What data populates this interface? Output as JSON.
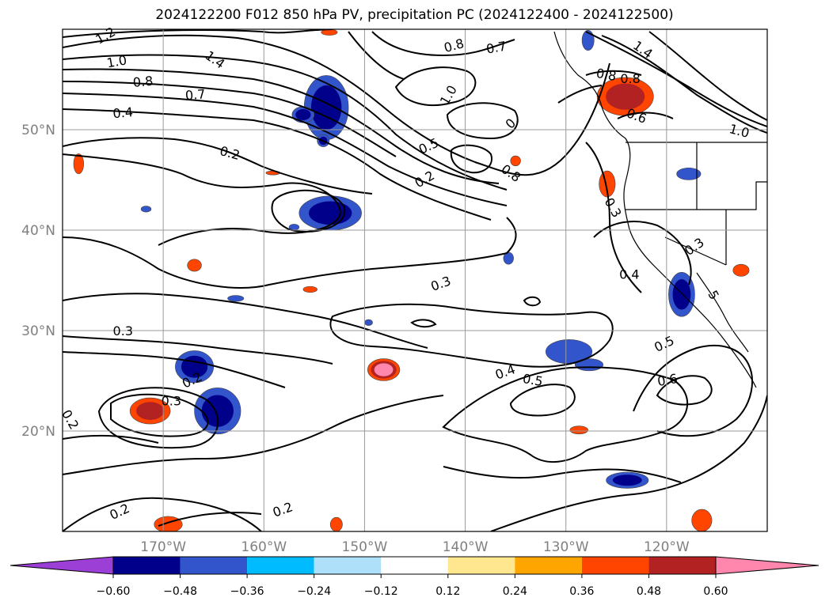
{
  "chart_data": {
    "type": "contour-map",
    "title": "2024122200 F012 850 hPa PV, precipitation PC (2024122400 - 2024122500)",
    "lon_ticks": [
      "170°W",
      "160°W",
      "150°W",
      "140°W",
      "130°W",
      "120°W"
    ],
    "lat_ticks": [
      "50°N",
      "40°N",
      "30°N",
      "20°N"
    ],
    "lon_values": [
      -170,
      -160,
      -150,
      -140,
      -130,
      -120
    ],
    "lat_values": [
      50,
      40,
      30,
      20
    ],
    "lon_range": [
      -180,
      -110
    ],
    "lat_range": [
      10,
      60
    ],
    "grid": true,
    "colorbar": {
      "orientation": "horizontal",
      "extend": "both",
      "ticks": [
        -0.6,
        -0.48,
        -0.36,
        -0.24,
        -0.12,
        0.12,
        0.24,
        0.36,
        0.48,
        0.6
      ],
      "tick_labels": [
        "−0.60",
        "−0.48",
        "−0.36",
        "−0.24",
        "−0.12",
        "0.12",
        "0.24",
        "0.36",
        "0.48",
        "0.60"
      ],
      "colors": [
        "#9b3fd6",
        "#00008b",
        "#3355cc",
        "#00bbff",
        "#aee0fa",
        "#ffffff",
        "#ffe78f",
        "#ffa500",
        "#ff4500",
        "#b22222",
        "#ff86ad"
      ]
    },
    "contour_labels": [
      {
        "text": "1.2",
        "lon": -175.7,
        "lat": 59.3,
        "rot": 30
      },
      {
        "text": "1.0",
        "lon": -174.6,
        "lat": 56.7,
        "rot": 10
      },
      {
        "text": "1.4",
        "lon": -164.9,
        "lat": 56.9,
        "rot": -35
      },
      {
        "text": "0.8",
        "lon": -172.0,
        "lat": 54.7,
        "rot": 5
      },
      {
        "text": "0.7",
        "lon": -166.8,
        "lat": 53.4,
        "rot": 5
      },
      {
        "text": "0.4",
        "lon": -174.0,
        "lat": 51.6,
        "rot": 5
      },
      {
        "text": "0.2",
        "lon": -163.4,
        "lat": 47.6,
        "rot": -15
      },
      {
        "text": "0.8",
        "lon": -141.1,
        "lat": 58.3,
        "rot": 15
      },
      {
        "text": "0.7",
        "lon": -136.9,
        "lat": 58.1,
        "rot": 10
      },
      {
        "text": "1.0",
        "lon": -141.6,
        "lat": 53.4,
        "rot": 60
      },
      {
        "text": "0.5",
        "lon": -143.6,
        "lat": 48.3,
        "rot": 25
      },
      {
        "text": "0.2",
        "lon": -144.0,
        "lat": 45.0,
        "rot": 30
      },
      {
        "text": "0.8",
        "lon": -135.5,
        "lat": 45.6,
        "rot": -35
      },
      {
        "text": "0.",
        "lon": -135.3,
        "lat": 50.7,
        "rot": 45
      },
      {
        "text": "0.8",
        "lon": -126.0,
        "lat": 55.4,
        "rot": -10
      },
      {
        "text": "0.8",
        "lon": -123.6,
        "lat": 55.0,
        "rot": 0
      },
      {
        "text": "1.4",
        "lon": -122.4,
        "lat": 57.9,
        "rot": -35
      },
      {
        "text": "0.6",
        "lon": -123.0,
        "lat": 51.3,
        "rot": -20
      },
      {
        "text": "1.0",
        "lon": -112.8,
        "lat": 49.8,
        "rot": -15
      },
      {
        "text": "0.3",
        "lon": -125.4,
        "lat": 42.2,
        "rot": -60
      },
      {
        "text": "0.3",
        "lon": -117.2,
        "lat": 38.3,
        "rot": 35
      },
      {
        "text": "0.4",
        "lon": -123.7,
        "lat": 35.5,
        "rot": 0
      },
      {
        "text": "5",
        "lon": -115.4,
        "lat": 33.5,
        "rot": -60
      },
      {
        "text": "0.3",
        "lon": -142.4,
        "lat": 34.6,
        "rot": 20
      },
      {
        "text": "0.3",
        "lon": -174.0,
        "lat": 29.9,
        "rot": 0
      },
      {
        "text": "0.2",
        "lon": -167.1,
        "lat": 25.0,
        "rot": 25
      },
      {
        "text": "0.3",
        "lon": -169.2,
        "lat": 22.9,
        "rot": 0
      },
      {
        "text": "0.2",
        "lon": -179.3,
        "lat": 21.1,
        "rot": -60
      },
      {
        "text": "0.4",
        "lon": -136.0,
        "lat": 25.8,
        "rot": 20
      },
      {
        "text": "0.5",
        "lon": -133.3,
        "lat": 25.0,
        "rot": -10
      },
      {
        "text": "0.5",
        "lon": -120.2,
        "lat": 28.6,
        "rot": 25
      },
      {
        "text": "0.6",
        "lon": -119.9,
        "lat": 25.0,
        "rot": 10
      },
      {
        "text": "0.2",
        "lon": -174.3,
        "lat": 11.9,
        "rot": 25
      },
      {
        "text": "0.2",
        "lon": -158.1,
        "lat": 12.1,
        "rot": 20
      }
    ],
    "precip_blobs": [
      {
        "lon": -153.8,
        "lat": 52.2,
        "rx": 2.2,
        "ry": 3.2,
        "levels": [
          "#3355cc",
          "#00008b"
        ]
      },
      {
        "lon": -156.1,
        "lat": 51.5,
        "rx": 1.1,
        "ry": 0.8,
        "levels": [
          "#3355cc",
          "#00008b"
        ]
      },
      {
        "lon": -154.1,
        "lat": 48.9,
        "rx": 0.6,
        "ry": 0.6,
        "levels": [
          "#3355cc",
          "#00008b"
        ]
      },
      {
        "lon": -153.4,
        "lat": 41.7,
        "rx": 3.1,
        "ry": 1.7,
        "levels": [
          "#3355cc",
          "#00008b"
        ]
      },
      {
        "lon": -157.0,
        "lat": 40.3,
        "rx": 0.5,
        "ry": 0.3,
        "levels": [
          "#3355cc"
        ]
      },
      {
        "lon": -164.6,
        "lat": 22.0,
        "rx": 2.3,
        "ry": 2.3,
        "levels": [
          "#3355cc",
          "#00008b"
        ]
      },
      {
        "lon": -166.9,
        "lat": 26.4,
        "rx": 1.9,
        "ry": 1.6,
        "levels": [
          "#3355cc",
          "#00008b"
        ]
      },
      {
        "lon": -171.3,
        "lat": 22.0,
        "rx": 2.0,
        "ry": 1.3,
        "levels": [
          "#ff4500",
          "#b22222"
        ]
      },
      {
        "lon": -129.7,
        "lat": 27.9,
        "rx": 2.3,
        "ry": 1.2,
        "levels": [
          "#3355cc"
        ]
      },
      {
        "lon": -127.7,
        "lat": 26.6,
        "rx": 1.4,
        "ry": 0.6,
        "levels": [
          "#3355cc"
        ]
      },
      {
        "lon": -123.9,
        "lat": 15.1,
        "rx": 2.1,
        "ry": 0.8,
        "levels": [
          "#3355cc",
          "#00008b"
        ]
      },
      {
        "lon": -148.1,
        "lat": 26.1,
        "rx": 1.6,
        "ry": 1.1,
        "levels": [
          "#ff4500",
          "#b22222",
          "#ff86ad"
        ]
      },
      {
        "lon": -124.1,
        "lat": 53.3,
        "rx": 2.8,
        "ry": 1.9,
        "levels": [
          "#ff4500",
          "#b22222"
        ]
      },
      {
        "lon": -118.5,
        "lat": 33.6,
        "rx": 1.3,
        "ry": 2.2,
        "levels": [
          "#3355cc",
          "#00008b"
        ]
      },
      {
        "lon": -117.8,
        "lat": 45.6,
        "rx": 1.2,
        "ry": 0.6,
        "levels": [
          "#3355cc"
        ]
      },
      {
        "lon": -166.9,
        "lat": 36.5,
        "rx": 0.7,
        "ry": 0.6,
        "levels": [
          "#ff4500"
        ]
      },
      {
        "lon": -178.4,
        "lat": 46.6,
        "rx": 0.5,
        "ry": 1.0,
        "levels": [
          "#ff4500"
        ]
      },
      {
        "lon": -135.0,
        "lat": 46.9,
        "rx": 0.5,
        "ry": 0.5,
        "levels": [
          "#ff4500"
        ]
      },
      {
        "lon": -128.7,
        "lat": 20.1,
        "rx": 0.9,
        "ry": 0.4,
        "levels": [
          "#ff4500"
        ]
      },
      {
        "lon": -116.5,
        "lat": 11.1,
        "rx": 1.0,
        "ry": 1.1,
        "levels": [
          "#ff4500"
        ]
      },
      {
        "lon": -169.5,
        "lat": 10.7,
        "rx": 1.4,
        "ry": 0.8,
        "levels": [
          "#ff4500"
        ]
      },
      {
        "lon": -152.8,
        "lat": 10.7,
        "rx": 0.6,
        "ry": 0.7,
        "levels": [
          "#ff4500"
        ]
      },
      {
        "lon": -125.9,
        "lat": 44.6,
        "rx": 0.8,
        "ry": 1.3,
        "levels": [
          "#ff4500"
        ]
      },
      {
        "lon": -112.6,
        "lat": 36.0,
        "rx": 0.8,
        "ry": 0.6,
        "levels": [
          "#ff4500"
        ]
      },
      {
        "lon": -153.5,
        "lat": 59.7,
        "rx": 0.8,
        "ry": 0.3,
        "levels": [
          "#ff4500"
        ]
      },
      {
        "lon": -127.8,
        "lat": 58.9,
        "rx": 0.6,
        "ry": 1.0,
        "levels": [
          "#3355cc"
        ]
      },
      {
        "lon": -135.7,
        "lat": 37.2,
        "rx": 0.5,
        "ry": 0.6,
        "levels": [
          "#3355cc"
        ]
      },
      {
        "lon": -162.8,
        "lat": 33.2,
        "rx": 0.8,
        "ry": 0.3,
        "levels": [
          "#3355cc"
        ]
      },
      {
        "lon": -171.7,
        "lat": 42.1,
        "rx": 0.5,
        "ry": 0.3,
        "levels": [
          "#3355cc"
        ]
      },
      {
        "lon": -149.6,
        "lat": 30.8,
        "rx": 0.4,
        "ry": 0.3,
        "levels": [
          "#3355cc"
        ]
      },
      {
        "lon": -155.4,
        "lat": 34.1,
        "rx": 0.7,
        "ry": 0.3,
        "levels": [
          "#ff4500"
        ]
      },
      {
        "lon": -159.1,
        "lat": 45.7,
        "rx": 0.7,
        "ry": 0.2,
        "levels": [
          "#ff4500"
        ]
      }
    ]
  }
}
